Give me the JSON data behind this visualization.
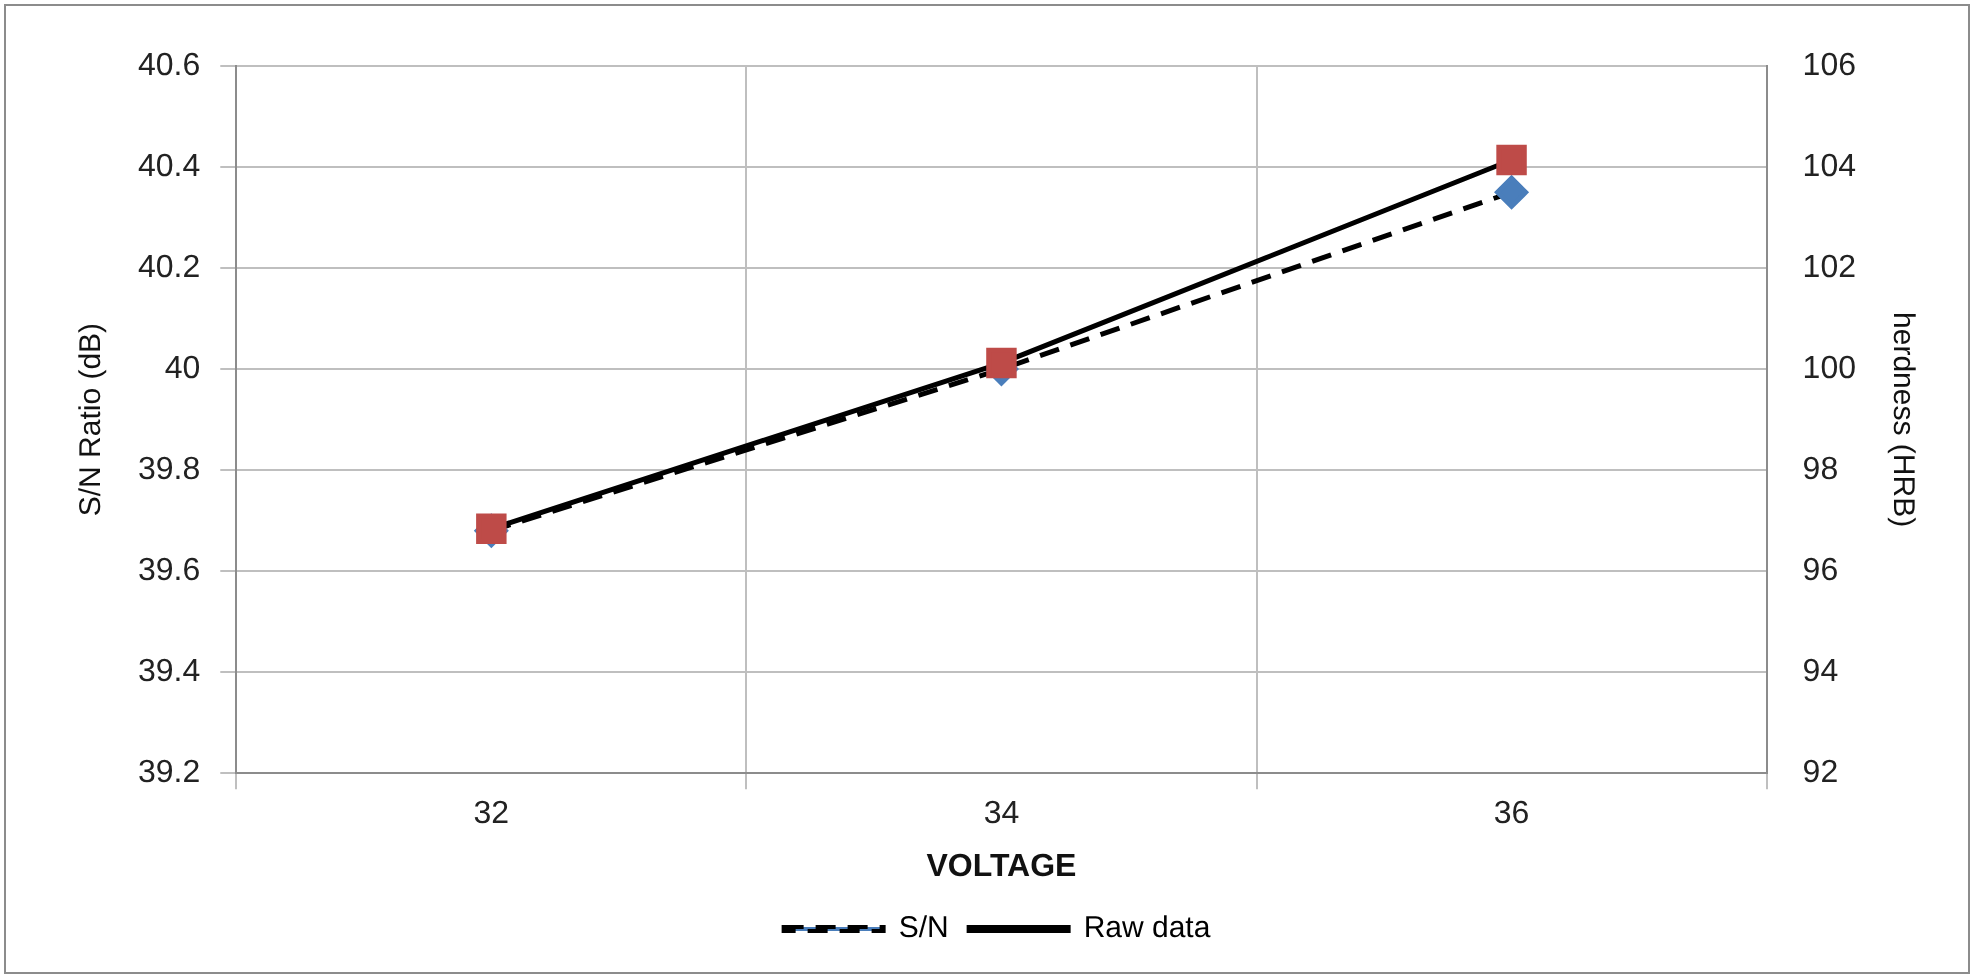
{
  "chart_data": {
    "type": "line",
    "xlabel": "VOLTAGE",
    "ylabel": "S/N Ratio (dB)",
    "y2label": "herdness (HRB)",
    "categories": [
      "32",
      "34",
      "36"
    ],
    "series": [
      {
        "name": "S/N",
        "color": "#4a7ebb",
        "values": [
          39.68,
          40.0,
          40.35
        ],
        "marker": "diamond",
        "line_style": "dashed"
      },
      {
        "name": "Raw data",
        "color": "#be4b48",
        "values": [
          96.84,
          100.12,
          104.14
        ],
        "axis": "y2",
        "marker": "square",
        "line_style": "solid"
      }
    ],
    "ylim": [
      39.2,
      40.6
    ],
    "yticks": [
      39.2,
      39.4,
      39.6,
      39.8,
      40,
      40.2,
      40.4,
      40.6
    ],
    "y2lim": [
      92,
      106
    ],
    "y2ticks": [
      92,
      94,
      96,
      98,
      100,
      102,
      104,
      106
    ],
    "grid": true,
    "legend": "bottom"
  }
}
